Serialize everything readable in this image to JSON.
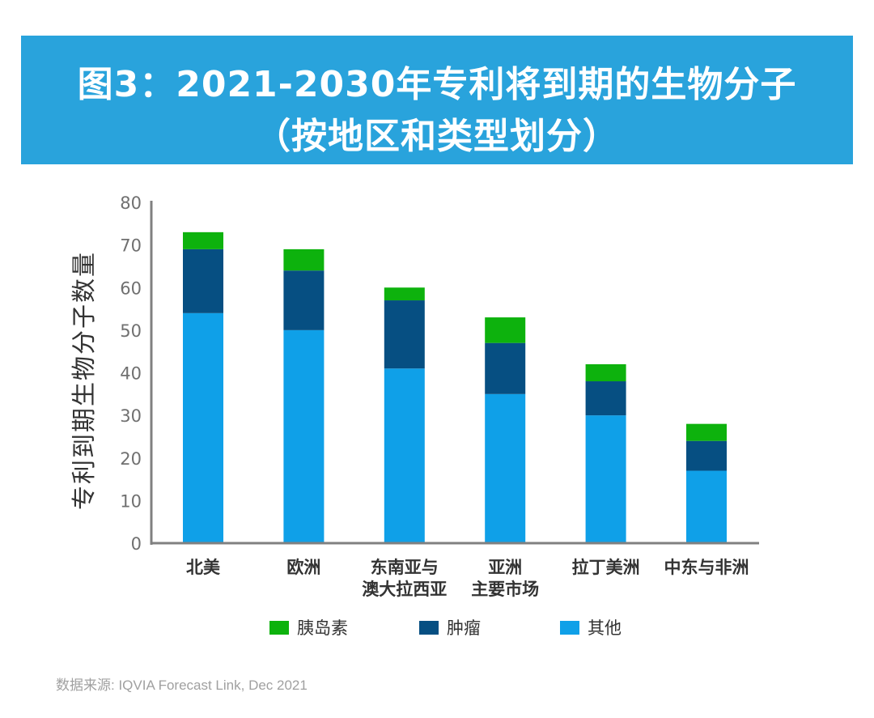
{
  "header": {
    "title_line1": "图3：2021-2030年专利将到期的生物分子",
    "title_line2": "（按地区和类型划分）"
  },
  "source": "数据来源: IQVIA Forecast Link, Dec 2021",
  "colors": {
    "banner": "#29a3dc",
    "insulin": "#0db20d",
    "oncology": "#064f82",
    "other": "#0fa0e8",
    "axis": "#808080"
  },
  "chart_data": {
    "type": "bar",
    "stacked": true,
    "title": "图3：2021-2030年专利将到期的生物分子（按地区和类型划分）",
    "xlabel": "",
    "ylabel": "专利到期生物分子数量",
    "ylim": [
      0,
      80
    ],
    "yticks": [
      0,
      10,
      20,
      30,
      40,
      50,
      60,
      70,
      80
    ],
    "grid": false,
    "legend_position": "bottom",
    "categories": [
      [
        "北美"
      ],
      [
        "欧洲"
      ],
      [
        "东南亚与",
        "澳大拉西亚"
      ],
      [
        "亚洲",
        "主要市场"
      ],
      [
        "拉丁美洲"
      ],
      [
        "中东与非洲"
      ]
    ],
    "series": [
      {
        "name": "其他",
        "color": "#0fa0e8",
        "values": [
          54,
          50,
          41,
          35,
          30,
          17
        ]
      },
      {
        "name": "肿瘤",
        "color": "#064f82",
        "values": [
          15,
          14,
          16,
          12,
          8,
          7
        ]
      },
      {
        "name": "胰岛素",
        "color": "#0db20d",
        "values": [
          4,
          5,
          3,
          6,
          4,
          4
        ]
      }
    ],
    "legend": [
      "胰岛素",
      "肿瘤",
      "其他"
    ]
  }
}
